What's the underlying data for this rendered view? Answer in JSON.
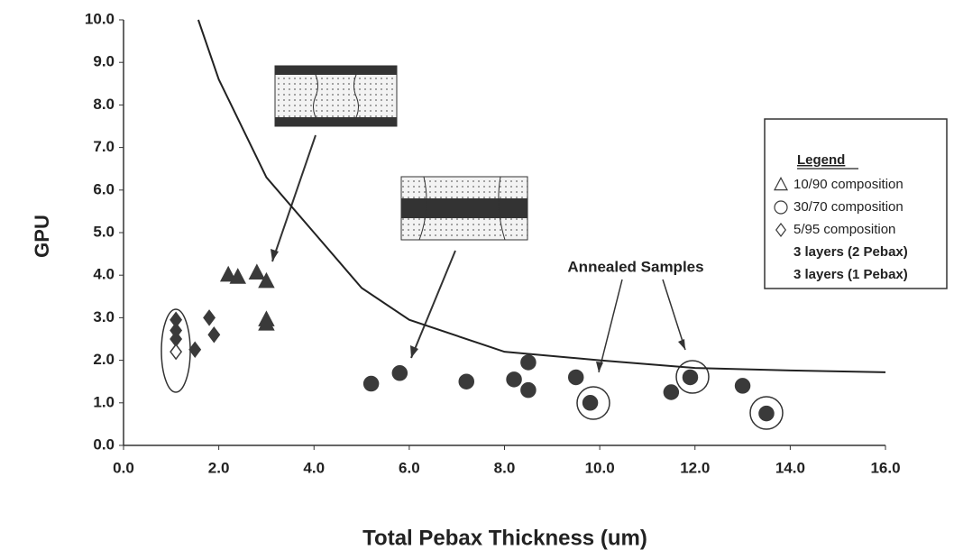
{
  "chart_data": {
    "type": "scatter",
    "xlabel": "Total Pebax Thickness (um)",
    "ylabel": "GPU",
    "xlim": [
      0,
      16
    ],
    "ylim": [
      0,
      10
    ],
    "xticks": [
      {
        "value": 0,
        "label": "0.0"
      },
      {
        "value": 2,
        "label": "2.0"
      },
      {
        "value": 4,
        "label": "4.0"
      },
      {
        "value": 6,
        "label": "6.0"
      },
      {
        "value": 8,
        "label": "8.0"
      },
      {
        "value": 10,
        "label": "10.0"
      },
      {
        "value": 12,
        "label": "12.0"
      },
      {
        "value": 14,
        "label": "14.0"
      },
      {
        "value": 16,
        "label": "16.0"
      }
    ],
    "yticks": [
      {
        "value": 0,
        "label": "0.0"
      },
      {
        "value": 1,
        "label": "1.0"
      },
      {
        "value": 2,
        "label": "2.0"
      },
      {
        "value": 3,
        "label": "3.0"
      },
      {
        "value": 4,
        "label": "4.0"
      },
      {
        "value": 5,
        "label": "5.0"
      },
      {
        "value": 6,
        "label": "6.0"
      },
      {
        "value": 7,
        "label": "7.0"
      },
      {
        "value": 8,
        "label": "8.0"
      },
      {
        "value": 9,
        "label": "9.0"
      },
      {
        "value": 10,
        "label": "10.0"
      }
    ],
    "series": [
      {
        "name": "10/90 composition",
        "marker": "triangle",
        "color": "#3a3a3a",
        "x": [
          2.2,
          2.4,
          2.8,
          3.0,
          3.0,
          3.0
        ],
        "values": [
          4.0,
          3.95,
          4.05,
          3.85,
          2.95,
          2.85
        ],
        "filled": [
          true,
          true,
          true,
          true,
          true,
          true
        ]
      },
      {
        "name": "30/70 composition",
        "marker": "circle",
        "color": "#3a3a3a",
        "x": [
          5.2,
          5.8,
          7.2,
          8.2,
          8.5,
          8.5,
          9.5,
          9.8,
          11.5,
          11.9,
          13.0,
          13.5
        ],
        "values": [
          1.45,
          1.7,
          1.5,
          1.55,
          1.95,
          1.3,
          1.6,
          1.0,
          1.25,
          1.6,
          1.4,
          0.75
        ],
        "filled": [
          true,
          true,
          true,
          true,
          true,
          true,
          true,
          true,
          true,
          true,
          true,
          true
        ]
      },
      {
        "name": "5/95 composition",
        "marker": "diamond",
        "color": "#3a3a3a",
        "x": [
          1.1,
          1.1,
          1.1,
          1.5,
          1.8,
          1.9,
          1.1
        ],
        "values": [
          2.95,
          2.7,
          2.5,
          2.25,
          3.0,
          2.6,
          2.2
        ],
        "filled": [
          true,
          true,
          true,
          true,
          true,
          true,
          false
        ]
      }
    ],
    "fit_line": {
      "x": [
        1.57,
        2,
        3,
        4,
        5,
        6,
        8,
        10,
        12,
        14,
        16
      ],
      "values": [
        10,
        8.6,
        6.3,
        5.0,
        3.7,
        2.95,
        2.2,
        2.0,
        1.82,
        1.76,
        1.72
      ],
      "color": "#222222"
    },
    "legend_title": "Legend",
    "legend_notes": [
      "3 layers (2 Pebax)",
      "3 layers (1 Pebax)"
    ],
    "annotation": "Annealed Samples"
  }
}
